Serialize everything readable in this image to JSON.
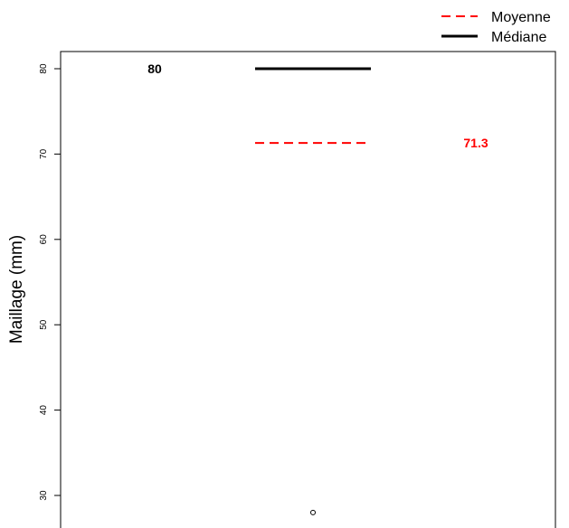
{
  "chart_data": {
    "type": "box",
    "ylabel": "Maillage (mm)",
    "yticks": [
      30,
      40,
      50,
      60,
      70,
      80
    ],
    "median": 80,
    "mean": 71.3,
    "median_label": "80",
    "mean_label": "71.3",
    "outliers": [
      28
    ],
    "legend": {
      "placement": "top-right",
      "entries": [
        {
          "label": "Moyenne",
          "style": "dashed",
          "color": "#ff0000"
        },
        {
          "label": "Médiane",
          "style": "solid",
          "color": "#000000"
        }
      ]
    },
    "colors": {
      "mean": "#ff0000",
      "median": "#000000"
    }
  }
}
